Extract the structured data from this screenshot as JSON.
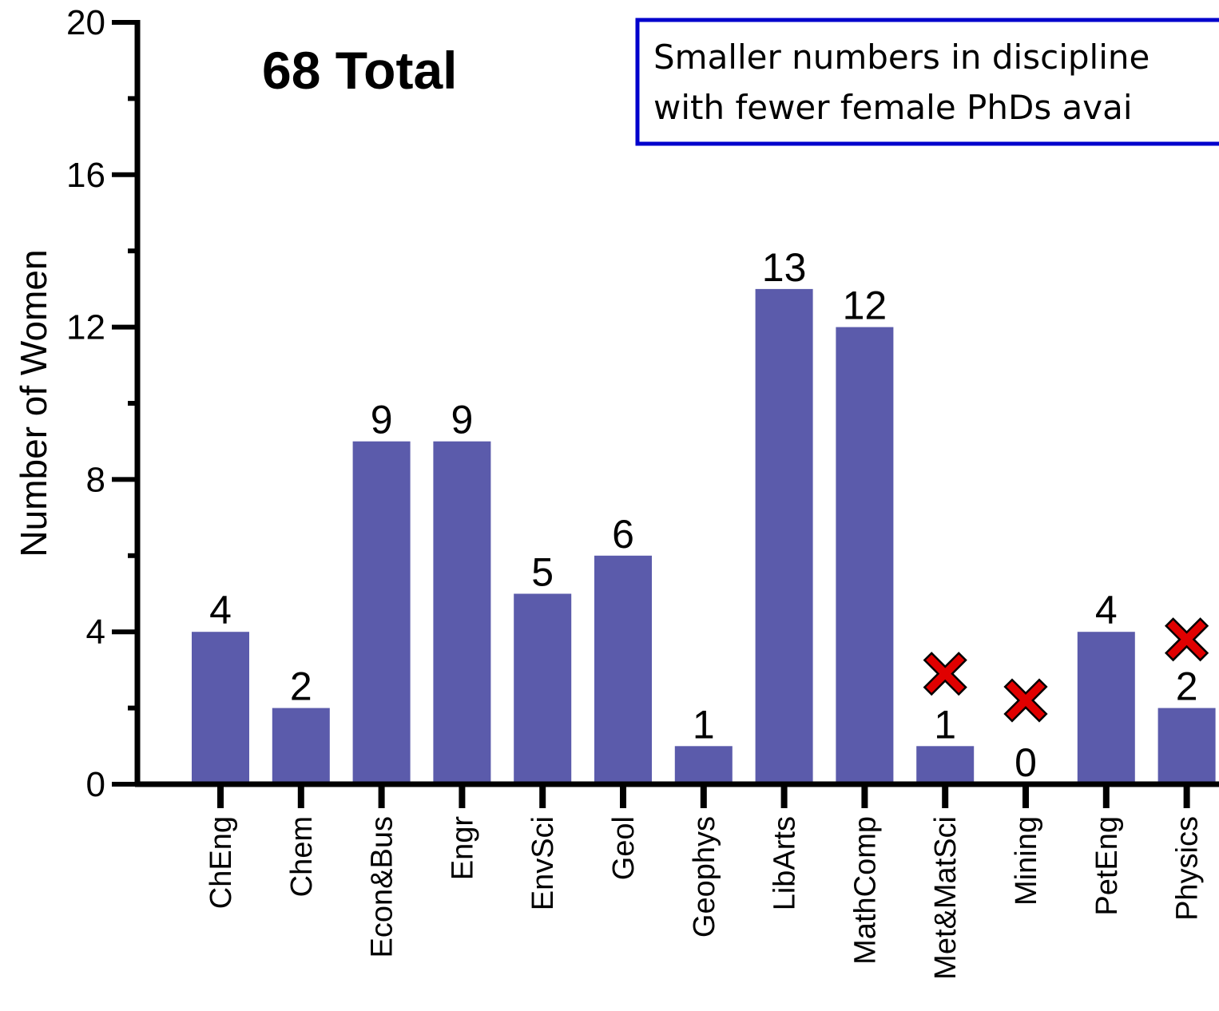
{
  "chart_data": {
    "type": "bar",
    "categories": [
      "ChEng",
      "Chem",
      "Econ&Bus",
      "Engr",
      "EnvSci",
      "Geol",
      "Geophys",
      "LibArts",
      "MathComp",
      "Met&MatSci",
      "Mining",
      "PetEng",
      "Physics"
    ],
    "values": [
      4,
      2,
      9,
      9,
      5,
      6,
      1,
      13,
      12,
      1,
      0,
      4,
      2
    ],
    "ylabel": "Number of Women",
    "xlabel": "",
    "ylim": [
      0,
      20
    ],
    "yticks": [
      "0",
      "4",
      "8",
      "12",
      "16",
      "20"
    ],
    "annotation_total": "68 Total",
    "note_lines": [
      "Smaller numbers in discipline",
      "with fewer female PhDs avai"
    ],
    "marked_categories": [
      {
        "category": "Met&MatSci",
        "at_value": 2.9
      },
      {
        "category": "Mining",
        "at_value": 2.2
      },
      {
        "category": "Physics",
        "at_value": 3.8
      }
    ],
    "grid": false,
    "colors": {
      "bar": "#5b5bab",
      "mark": "#e00000",
      "note_border": "#0000cc"
    }
  }
}
